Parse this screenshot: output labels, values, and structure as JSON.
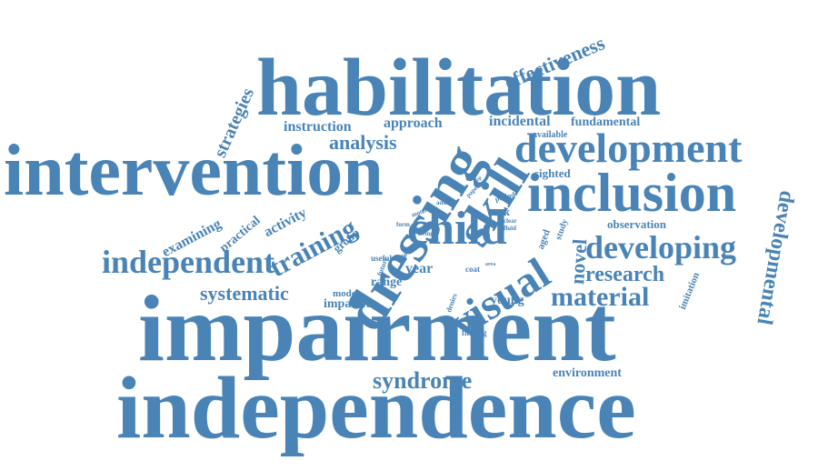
{
  "color": "#4a84b6",
  "words": [
    "habilitation",
    "intervention",
    "impairment",
    "independence",
    "inclusion",
    "development",
    "dressing",
    "skill",
    "child",
    "visual",
    "developing",
    "independent",
    "material",
    "syndrome",
    "research",
    "training",
    "systematic",
    "developmental",
    "analysis",
    "effectiveness",
    "strategies",
    "instruction",
    "approach",
    "incidental",
    "fundamental",
    "activity",
    "practical",
    "examining",
    "novel",
    "observation",
    "environment",
    "impaired",
    "range",
    "year",
    "young",
    "group",
    "model",
    "imitation",
    "available",
    "sighted",
    "task",
    "aged",
    "study",
    "finding",
    "useful",
    "future",
    "vision",
    "form",
    "motor",
    "adult",
    "living",
    "paper",
    "clear",
    "fluid",
    "period",
    "denies",
    "coat",
    "area",
    "step"
  ]
}
